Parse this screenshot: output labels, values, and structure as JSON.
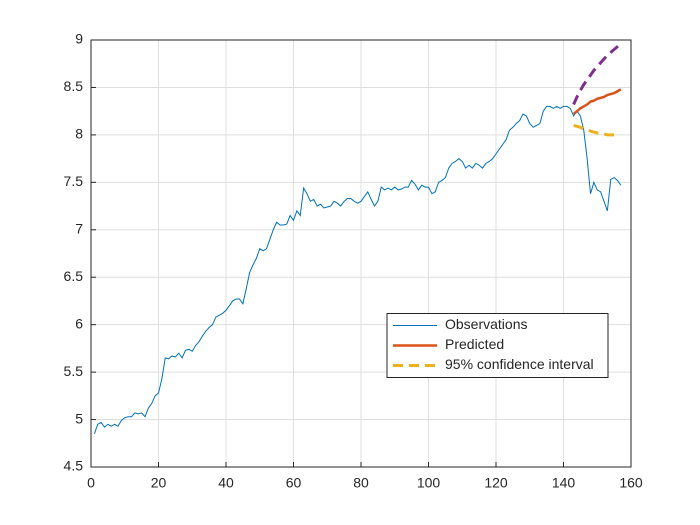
{
  "chart_data": {
    "type": "line",
    "xlim": [
      0,
      160
    ],
    "xticks": [
      0,
      20,
      40,
      60,
      80,
      100,
      120,
      140,
      160
    ],
    "ylim": [
      4.5,
      9
    ],
    "yticks": [
      4.5,
      5,
      5.5,
      6,
      6.5,
      7,
      7.5,
      8,
      8.5,
      9
    ],
    "grid": true,
    "legend_location": "east",
    "series": [
      {
        "name": "Observations",
        "color": "#0072BD",
        "style": "solid",
        "x": [
          1,
          2,
          3,
          4,
          5,
          6,
          7,
          8,
          9,
          10,
          11,
          12,
          13,
          14,
          15,
          16,
          17,
          18,
          19,
          20,
          21,
          22,
          23,
          24,
          25,
          26,
          27,
          28,
          29,
          30,
          31,
          32,
          33,
          34,
          35,
          36,
          37,
          38,
          39,
          40,
          41,
          42,
          43,
          44,
          45,
          46,
          47,
          48,
          49,
          50,
          51,
          52,
          53,
          54,
          55,
          56,
          57,
          58,
          59,
          60,
          61,
          62,
          63,
          64,
          65,
          66,
          67,
          68,
          69,
          70,
          71,
          72,
          73,
          74,
          75,
          76,
          77,
          78,
          79,
          80,
          81,
          82,
          83,
          84,
          85,
          86,
          87,
          88,
          89,
          90,
          91,
          92,
          93,
          94,
          95,
          96,
          97,
          98,
          99,
          100,
          101,
          102,
          103,
          104,
          105,
          106,
          107,
          108,
          109,
          110,
          111,
          112,
          113,
          114,
          115,
          116,
          117,
          118,
          119,
          120,
          121,
          122,
          123,
          124,
          125,
          126,
          127,
          128,
          129,
          130,
          131,
          132,
          133,
          134,
          135,
          136,
          137,
          138,
          139,
          140,
          141,
          142,
          143,
          144,
          145,
          146,
          147,
          148,
          149,
          150,
          151,
          152,
          153,
          154,
          155,
          156,
          157
        ],
        "values": [
          4.85,
          4.95,
          4.97,
          4.92,
          4.95,
          4.93,
          4.95,
          4.93,
          4.99,
          5.02,
          5.03,
          5.03,
          5.07,
          5.06,
          5.07,
          5.03,
          5.12,
          5.17,
          5.25,
          5.28,
          5.43,
          5.65,
          5.64,
          5.67,
          5.66,
          5.7,
          5.65,
          5.73,
          5.74,
          5.72,
          5.78,
          5.82,
          5.88,
          5.93,
          5.97,
          6.0,
          6.08,
          6.1,
          6.12,
          6.15,
          6.2,
          6.25,
          6.27,
          6.27,
          6.22,
          6.38,
          6.55,
          6.63,
          6.7,
          6.8,
          6.78,
          6.8,
          6.9,
          7.0,
          7.08,
          7.05,
          7.05,
          7.06,
          7.15,
          7.1,
          7.2,
          7.15,
          7.44,
          7.38,
          7.3,
          7.32,
          7.25,
          7.27,
          7.23,
          7.24,
          7.25,
          7.3,
          7.28,
          7.25,
          7.3,
          7.33,
          7.33,
          7.3,
          7.28,
          7.3,
          7.35,
          7.4,
          7.32,
          7.25,
          7.3,
          7.45,
          7.42,
          7.44,
          7.42,
          7.45,
          7.42,
          7.43,
          7.45,
          7.45,
          7.52,
          7.48,
          7.42,
          7.47,
          7.45,
          7.45,
          7.38,
          7.4,
          7.5,
          7.52,
          7.55,
          7.65,
          7.7,
          7.72,
          7.75,
          7.72,
          7.65,
          7.68,
          7.65,
          7.7,
          7.68,
          7.65,
          7.7,
          7.72,
          7.75,
          7.8,
          7.85,
          7.9,
          7.95,
          8.05,
          8.08,
          8.12,
          8.15,
          8.22,
          8.2,
          8.12,
          8.08,
          8.1,
          8.12,
          8.25,
          8.3,
          8.3,
          8.28,
          8.3,
          8.28,
          8.3,
          8.3,
          8.28,
          8.2,
          8.25,
          8.2,
          8.05,
          7.75,
          7.38,
          7.5,
          7.42,
          7.4,
          7.3,
          7.2,
          7.53,
          7.55,
          7.52,
          7.47
        ]
      },
      {
        "name": "Predicted",
        "color": "#D95319",
        "style": "solid",
        "x": [
          143,
          144,
          145,
          146,
          147,
          148,
          149,
          150,
          151,
          152,
          153,
          154,
          155,
          156,
          157
        ],
        "values": [
          8.22,
          8.25,
          8.28,
          8.3,
          8.32,
          8.35,
          8.36,
          8.38,
          8.39,
          8.4,
          8.42,
          8.43,
          8.44,
          8.46,
          8.48
        ]
      },
      {
        "name": "95% confidence interval",
        "color": "#EDB120",
        "style": "dashed",
        "x": [
          143,
          144,
          145,
          146,
          147,
          148,
          149,
          150,
          151,
          152,
          153,
          154,
          155
        ],
        "values": [
          8.1,
          8.09,
          8.08,
          8.06,
          8.05,
          8.04,
          8.03,
          8.02,
          8.02,
          8.01,
          8.0,
          8.0,
          8.0
        ]
      },
      {
        "color": "#7E2F8E",
        "style": "dashed",
        "x": [
          143,
          144,
          145,
          146,
          147,
          148,
          149,
          150,
          151,
          152,
          153,
          154,
          155,
          156,
          157
        ],
        "values": [
          8.32,
          8.4,
          8.47,
          8.53,
          8.58,
          8.63,
          8.68,
          8.72,
          8.76,
          8.8,
          8.84,
          8.87,
          8.9,
          8.93,
          8.96
        ]
      }
    ]
  }
}
